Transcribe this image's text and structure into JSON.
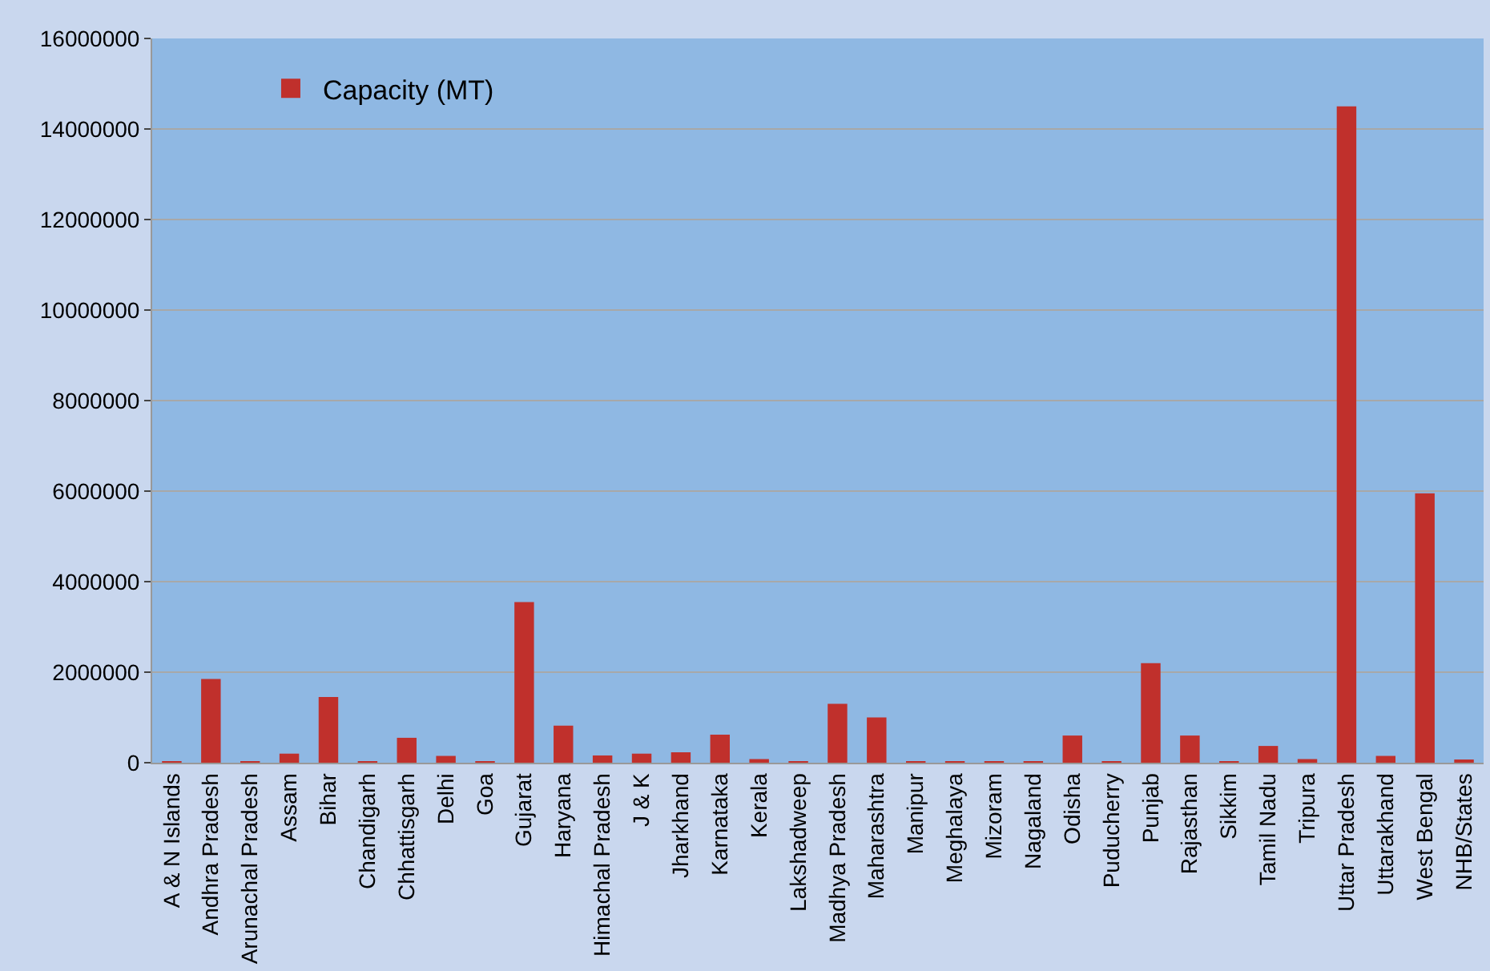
{
  "chart_data": {
    "type": "bar",
    "categories": [
      "A & N Islands",
      "Andhra Pradesh",
      "Arunachal Pradesh",
      "Assam",
      "Bihar",
      "Chandigarh",
      "Chhattisgarh",
      "Delhi",
      "Goa",
      "Gujarat",
      "Haryana",
      "Himachal Pradesh",
      "J & K",
      "Jharkhand",
      "Karnataka",
      "Kerala",
      "Lakshadweep",
      "Madhya Pradesh",
      "Maharashtra",
      "Manipur",
      "Meghalaya",
      "Mizoram",
      "Nagaland",
      "Odisha",
      "Puducherry",
      "Punjab",
      "Rajasthan",
      "Sikkim",
      "Tamil Nadu",
      "Tripura",
      "Uttar Pradesh",
      "Uttarakhand",
      "West Bengal",
      "NHB/States"
    ],
    "series": [
      {
        "name": "Capacity (MT)",
        "color": "#c0302c",
        "values": [
          20000,
          1850000,
          10000,
          200000,
          1450000,
          20000,
          550000,
          150000,
          10000,
          3550000,
          820000,
          160000,
          200000,
          230000,
          620000,
          80000,
          10000,
          1300000,
          1000000,
          10000,
          10000,
          10000,
          10000,
          600000,
          10000,
          2200000,
          600000,
          10000,
          370000,
          80000,
          14500000,
          150000,
          5950000,
          50000
        ]
      }
    ],
    "ylim": [
      0,
      16000000
    ],
    "yticks": [
      0,
      2000000,
      4000000,
      6000000,
      8000000,
      10000000,
      12000000,
      14000000,
      16000000
    ],
    "grid": "y",
    "legend": "top left"
  }
}
